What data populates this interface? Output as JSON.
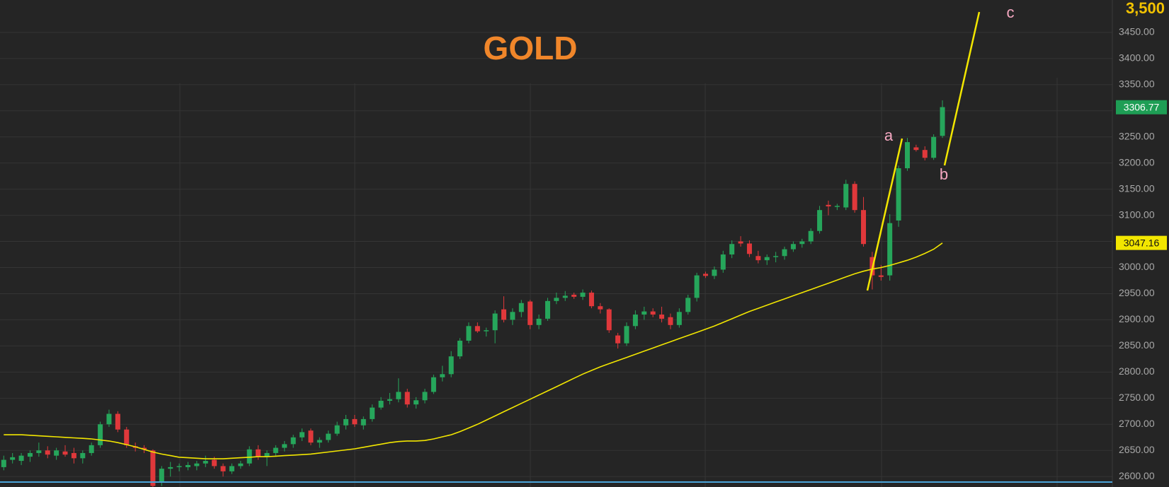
{
  "chart_data": {
    "type": "candlestick",
    "title": "GOLD",
    "annotations": [
      "a",
      "b",
      "c"
    ],
    "up_color": "#26a65b",
    "down_color": "#e0383b",
    "ylim": [
      2580,
      3512
    ],
    "yticks": [
      {
        "value": 2600,
        "label": "2600.00"
      },
      {
        "value": 2650,
        "label": "2650.00"
      },
      {
        "value": 2700,
        "label": "2700.00"
      },
      {
        "value": 2750,
        "label": "2750.00"
      },
      {
        "value": 2800,
        "label": "2800.00"
      },
      {
        "value": 2850,
        "label": "2850.00"
      },
      {
        "value": 2900,
        "label": "2900.00"
      },
      {
        "value": 2950,
        "label": "2950.00"
      },
      {
        "value": 3000,
        "label": "3000.00"
      },
      {
        "value": 3050,
        "label": "3050.00"
      },
      {
        "value": 3100,
        "label": "3100.00"
      },
      {
        "value": 3150,
        "label": "3150.00"
      },
      {
        "value": 3200,
        "label": "3200.00"
      },
      {
        "value": 3250,
        "label": "3250.00"
      },
      {
        "value": 3300,
        "label": "3300.00"
      },
      {
        "value": 3350,
        "label": "3350.00"
      },
      {
        "value": 3400,
        "label": "3400.00"
      },
      {
        "value": 3450,
        "label": "3450.00"
      },
      {
        "value": 3500,
        "label": "3,500"
      }
    ],
    "grid": true,
    "last_price": 3306.77,
    "ma_price": 3047.16,
    "candles": [
      [
        2618,
        2640,
        2612,
        2632
      ],
      [
        2632,
        2645,
        2625,
        2637
      ],
      [
        2630,
        2645,
        2622,
        2640
      ],
      [
        2638,
        2650,
        2628,
        2645
      ],
      [
        2645,
        2665,
        2638,
        2650
      ],
      [
        2650,
        2658,
        2635,
        2642
      ],
      [
        2640,
        2655,
        2632,
        2650
      ],
      [
        2648,
        2660,
        2638,
        2642
      ],
      [
        2645,
        2655,
        2625,
        2635
      ],
      [
        2635,
        2650,
        2625,
        2645
      ],
      [
        2645,
        2665,
        2640,
        2660
      ],
      [
        2660,
        2705,
        2655,
        2700
      ],
      [
        2700,
        2728,
        2695,
        2720
      ],
      [
        2720,
        2725,
        2685,
        2690
      ],
      [
        2690,
        2695,
        2655,
        2660
      ],
      [
        2658,
        2665,
        2648,
        2655
      ],
      [
        2655,
        2660,
        2645,
        2652
      ],
      [
        2650,
        2652,
        2575,
        2582
      ],
      [
        2590,
        2620,
        2582,
        2615
      ],
      [
        2615,
        2628,
        2600,
        2618
      ],
      [
        2618,
        2625,
        2610,
        2620
      ],
      [
        2618,
        2628,
        2612,
        2622
      ],
      [
        2620,
        2630,
        2612,
        2625
      ],
      [
        2625,
        2640,
        2618,
        2630
      ],
      [
        2632,
        2638,
        2615,
        2620
      ],
      [
        2620,
        2625,
        2600,
        2610
      ],
      [
        2610,
        2625,
        2605,
        2620
      ],
      [
        2620,
        2630,
        2615,
        2625
      ],
      [
        2625,
        2658,
        2620,
        2652
      ],
      [
        2652,
        2660,
        2632,
        2638
      ],
      [
        2638,
        2650,
        2620,
        2645
      ],
      [
        2645,
        2660,
        2640,
        2655
      ],
      [
        2655,
        2668,
        2648,
        2662
      ],
      [
        2662,
        2680,
        2655,
        2675
      ],
      [
        2675,
        2692,
        2668,
        2685
      ],
      [
        2688,
        2692,
        2660,
        2665
      ],
      [
        2665,
        2675,
        2655,
        2670
      ],
      [
        2670,
        2688,
        2665,
        2682
      ],
      [
        2682,
        2705,
        2678,
        2698
      ],
      [
        2698,
        2718,
        2690,
        2710
      ],
      [
        2710,
        2718,
        2695,
        2700
      ],
      [
        2698,
        2715,
        2690,
        2710
      ],
      [
        2710,
        2738,
        2705,
        2732
      ],
      [
        2732,
        2752,
        2728,
        2745
      ],
      [
        2745,
        2760,
        2738,
        2748
      ],
      [
        2748,
        2788,
        2742,
        2762
      ],
      [
        2762,
        2768,
        2732,
        2738
      ],
      [
        2738,
        2752,
        2730,
        2746
      ],
      [
        2746,
        2768,
        2740,
        2762
      ],
      [
        2762,
        2795,
        2758,
        2790
      ],
      [
        2790,
        2812,
        2782,
        2796
      ],
      [
        2796,
        2840,
        2790,
        2830
      ],
      [
        2830,
        2865,
        2825,
        2860
      ],
      [
        2860,
        2895,
        2855,
        2888
      ],
      [
        2888,
        2895,
        2875,
        2878
      ],
      [
        2878,
        2885,
        2868,
        2880
      ],
      [
        2880,
        2918,
        2855,
        2912
      ],
      [
        2920,
        2945,
        2895,
        2900
      ],
      [
        2900,
        2922,
        2890,
        2915
      ],
      [
        2915,
        2938,
        2905,
        2932
      ],
      [
        2935,
        2938,
        2882,
        2890
      ],
      [
        2890,
        2910,
        2882,
        2902
      ],
      [
        2902,
        2942,
        2898,
        2936
      ],
      [
        2936,
        2952,
        2930,
        2942
      ],
      [
        2942,
        2955,
        2936,
        2946
      ],
      [
        2948,
        2952,
        2940,
        2944
      ],
      [
        2944,
        2958,
        2938,
        2952
      ],
      [
        2952,
        2956,
        2922,
        2926
      ],
      [
        2926,
        2932,
        2912,
        2920
      ],
      [
        2920,
        2922,
        2875,
        2880
      ],
      [
        2870,
        2875,
        2845,
        2855
      ],
      [
        2855,
        2895,
        2850,
        2888
      ],
      [
        2888,
        2918,
        2882,
        2910
      ],
      [
        2910,
        2925,
        2900,
        2916
      ],
      [
        2916,
        2922,
        2905,
        2910
      ],
      [
        2910,
        2925,
        2895,
        2902
      ],
      [
        2905,
        2912,
        2882,
        2890
      ],
      [
        2890,
        2922,
        2885,
        2915
      ],
      [
        2915,
        2948,
        2910,
        2942
      ],
      [
        2942,
        2990,
        2935,
        2985
      ],
      [
        2988,
        2992,
        2980,
        2984
      ],
      [
        2984,
        3002,
        2978,
        2996
      ],
      [
        2996,
        3032,
        2990,
        3025
      ],
      [
        3025,
        3052,
        3018,
        3045
      ],
      [
        3050,
        3060,
        3040,
        3046
      ],
      [
        3046,
        3052,
        3020,
        3026
      ],
      [
        3022,
        3032,
        3008,
        3014
      ],
      [
        3014,
        3025,
        3005,
        3020
      ],
      [
        3020,
        3030,
        3010,
        3022
      ],
      [
        3022,
        3040,
        3015,
        3035
      ],
      [
        3035,
        3050,
        3030,
        3045
      ],
      [
        3045,
        3055,
        3038,
        3050
      ],
      [
        3050,
        3075,
        3045,
        3070
      ],
      [
        3070,
        3118,
        3065,
        3110
      ],
      [
        3120,
        3128,
        3100,
        3117
      ],
      [
        3117,
        3122,
        3110,
        3118
      ],
      [
        3115,
        3168,
        3110,
        3160
      ],
      [
        3160,
        3165,
        3105,
        3110
      ],
      [
        3110,
        3135,
        3040,
        3045
      ],
      [
        3020,
        3030,
        2958,
        2985
      ],
      [
        2985,
        3005,
        2975,
        2982
      ],
      [
        2985,
        3102,
        2975,
        3085
      ],
      [
        3090,
        3195,
        3078,
        3190
      ],
      [
        3190,
        3248,
        3185,
        3240
      ],
      [
        3230,
        3235,
        3222,
        3225
      ],
      [
        3225,
        3232,
        3205,
        3210
      ],
      [
        3210,
        3255,
        3206,
        3250
      ],
      [
        3252,
        3320,
        3248,
        3307
      ]
    ],
    "ma": {
      "color": "#f2e600",
      "values": [
        2680,
        2680,
        2680,
        2679,
        2678,
        2677,
        2676,
        2675,
        2674,
        2673,
        2672,
        2670,
        2668,
        2665,
        2661,
        2657,
        2652,
        2647,
        2643,
        2640,
        2637,
        2636,
        2635,
        2634,
        2634,
        2634,
        2635,
        2636,
        2637,
        2638,
        2638,
        2639,
        2640,
        2641,
        2642,
        2643,
        2645,
        2647,
        2649,
        2651,
        2653,
        2656,
        2659,
        2662,
        2665,
        2667,
        2668,
        2668,
        2669,
        2672,
        2676,
        2680,
        2686,
        2693,
        2700,
        2708,
        2716,
        2724,
        2732,
        2740,
        2748,
        2756,
        2764,
        2772,
        2780,
        2788,
        2796,
        2803,
        2810,
        2816,
        2822,
        2828,
        2834,
        2840,
        2846,
        2852,
        2858,
        2864,
        2870,
        2876,
        2882,
        2888,
        2895,
        2902,
        2909,
        2916,
        2922,
        2928,
        2934,
        2940,
        2946,
        2952,
        2958,
        2964,
        2970,
        2976,
        2982,
        2988,
        2993,
        2997,
        3000,
        3004,
        3009,
        3014,
        3020,
        3027,
        3035,
        3047
      ]
    }
  }
}
